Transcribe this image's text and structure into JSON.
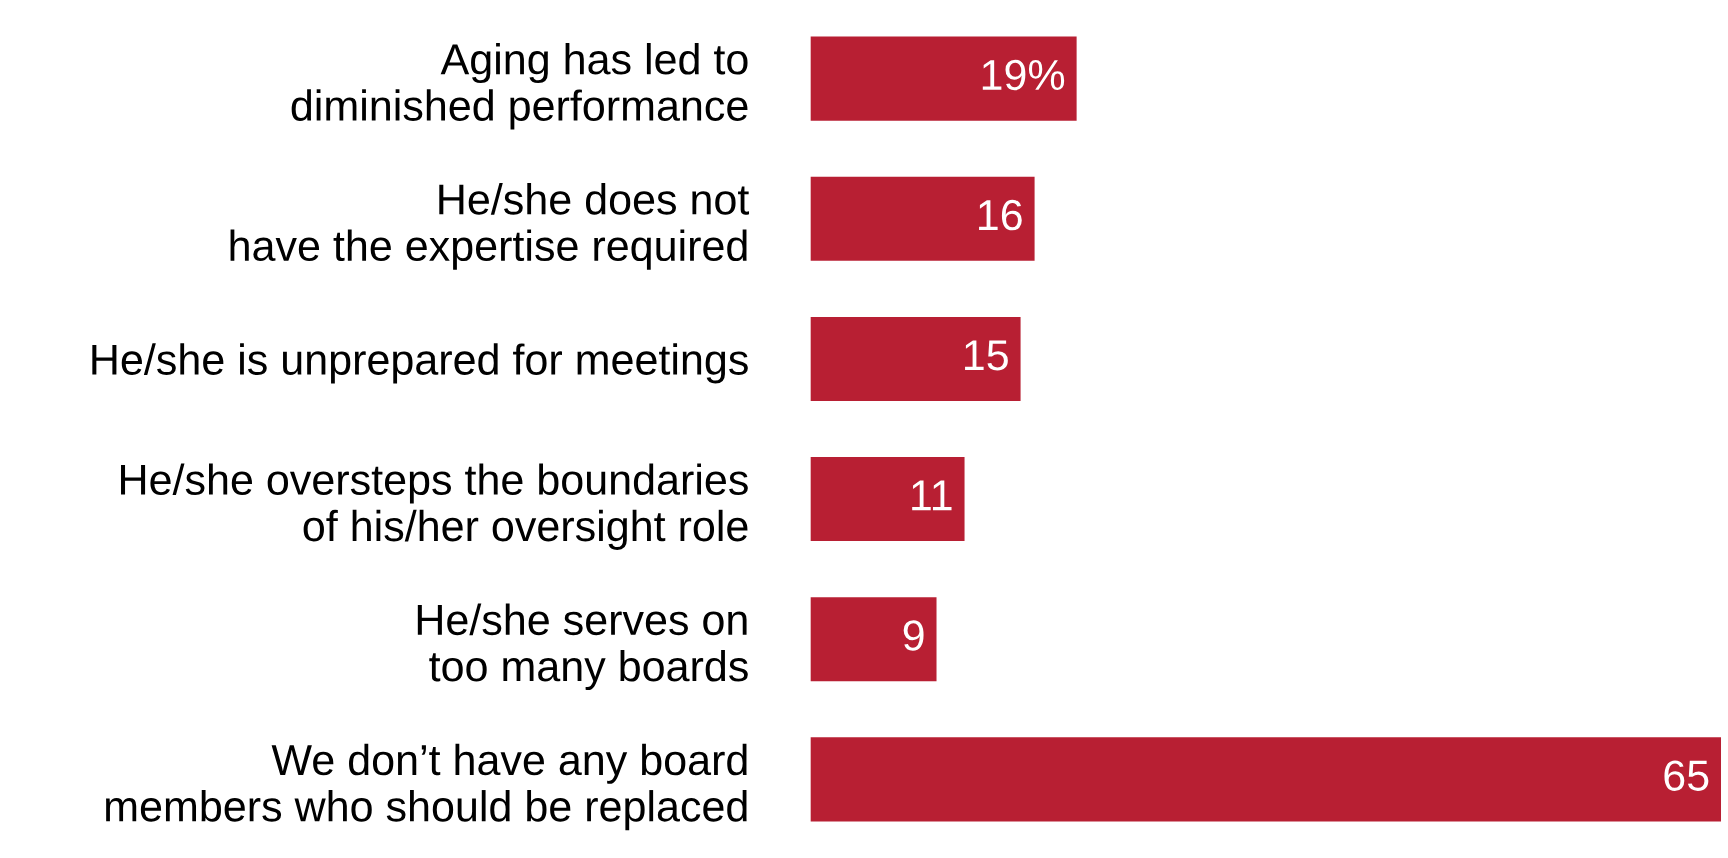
{
  "chart_data": {
    "type": "bar",
    "orientation": "horizontal",
    "categories": [
      "Aging has led to\ndiminished performance",
      "He/she does not\nhave the expertise required",
      "He/she is unprepared for meetings",
      "He/she oversteps the boundaries\nof his/her oversight role",
      "He/she serves on\ntoo many boards",
      "We don’t have any board\nmembers who should be replaced"
    ],
    "values": [
      19,
      16,
      15,
      11,
      9,
      65
    ],
    "value_labels": [
      "19%",
      "16",
      "15",
      "11",
      "9",
      "65"
    ],
    "color": "#b81f33",
    "tick_labels": "y",
    "grid": false,
    "legend": false
  }
}
